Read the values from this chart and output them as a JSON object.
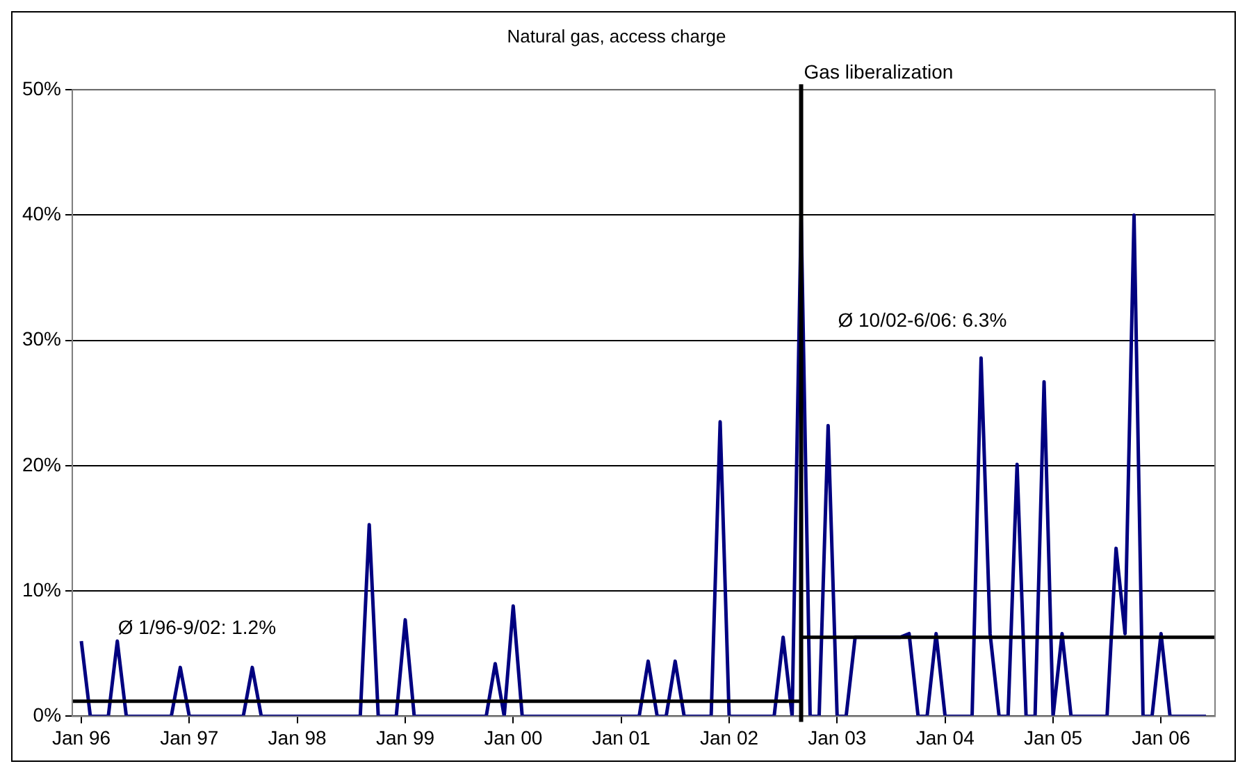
{
  "chart_data": {
    "type": "line",
    "title": "Natural gas, access charge",
    "x": [
      "1996-01",
      "1996-02",
      "1996-03",
      "1996-04",
      "1996-05",
      "1996-06",
      "1996-07",
      "1996-08",
      "1996-09",
      "1996-10",
      "1996-11",
      "1996-12",
      "1997-01",
      "1997-02",
      "1997-03",
      "1997-04",
      "1997-05",
      "1997-06",
      "1997-07",
      "1997-08",
      "1997-09",
      "1997-10",
      "1997-11",
      "1997-12",
      "1998-01",
      "1998-02",
      "1998-03",
      "1998-04",
      "1998-05",
      "1998-06",
      "1998-07",
      "1998-08",
      "1998-09",
      "1998-10",
      "1998-11",
      "1998-12",
      "1999-01",
      "1999-02",
      "1999-03",
      "1999-04",
      "1999-05",
      "1999-06",
      "1999-07",
      "1999-08",
      "1999-09",
      "1999-10",
      "1999-11",
      "1999-12",
      "2000-01",
      "2000-02",
      "2000-03",
      "2000-04",
      "2000-05",
      "2000-06",
      "2000-07",
      "2000-08",
      "2000-09",
      "2000-10",
      "2000-11",
      "2000-12",
      "2001-01",
      "2001-02",
      "2001-03",
      "2001-04",
      "2001-05",
      "2001-06",
      "2001-07",
      "2001-08",
      "2001-09",
      "2001-10",
      "2001-11",
      "2001-12",
      "2002-01",
      "2002-02",
      "2002-03",
      "2002-04",
      "2002-05",
      "2002-06",
      "2002-07",
      "2002-08",
      "2002-09",
      "2002-10",
      "2002-11",
      "2002-12",
      "2003-01",
      "2003-02",
      "2003-03",
      "2003-04",
      "2003-05",
      "2003-06",
      "2003-07",
      "2003-08",
      "2003-09",
      "2003-10",
      "2003-11",
      "2003-12",
      "2004-01",
      "2004-02",
      "2004-03",
      "2004-04",
      "2004-05",
      "2004-06",
      "2004-07",
      "2004-08",
      "2004-09",
      "2004-10",
      "2004-11",
      "2004-12",
      "2005-01",
      "2005-02",
      "2005-03",
      "2005-04",
      "2005-05",
      "2005-06",
      "2005-07",
      "2005-08",
      "2005-09",
      "2005-10",
      "2005-11",
      "2005-12",
      "2006-01",
      "2006-02",
      "2006-03",
      "2006-04",
      "2006-05",
      "2006-06"
    ],
    "series": [
      {
        "color": "#000080",
        "values": [
          6,
          0,
          0,
          0,
          6,
          0,
          0,
          0,
          0,
          0,
          0,
          3.9,
          0,
          0,
          0,
          0,
          0,
          0,
          0,
          3.9,
          0,
          0,
          0,
          0,
          0,
          0,
          0,
          0,
          0,
          0,
          0,
          0,
          15.3,
          0,
          0,
          0,
          7.7,
          0,
          0,
          0,
          0,
          0,
          0,
          0,
          0,
          0,
          4.2,
          0,
          8.8,
          0,
          0,
          0,
          0,
          0,
          0,
          0,
          0,
          0,
          0,
          0,
          0,
          0,
          0,
          4.4,
          0,
          0,
          4.4,
          0,
          0,
          0,
          0,
          23.5,
          0,
          0,
          0,
          0,
          0,
          0,
          6.3,
          0,
          40,
          0,
          0,
          23.2,
          0,
          0,
          6.3,
          6.3,
          6.3,
          6.3,
          6.3,
          6.3,
          6.6,
          0,
          0,
          6.6,
          0,
          0,
          0,
          0,
          28.6,
          6.6,
          0,
          0,
          20.1,
          0,
          0,
          26.7,
          0,
          6.6,
          0,
          0,
          0,
          0,
          0,
          13.4,
          6.6,
          40,
          0,
          0,
          6.6,
          0,
          0,
          0,
          0,
          0
        ]
      },
      {
        "type": "line",
        "color": "#000000",
        "x": [
          "1995-12",
          "2002-09"
        ],
        "values": [
          1.2,
          1.2
        ]
      },
      {
        "type": "line",
        "color": "#000000",
        "x": [
          "2002-09",
          "2006-07"
        ],
        "values": [
          6.3,
          6.3
        ]
      }
    ],
    "xlim": [
      "1995-12",
      "2006-07"
    ],
    "xticks": [
      {
        "value": "1996-01",
        "label": "Jan 96"
      },
      {
        "value": "1997-01",
        "label": "Jan 97"
      },
      {
        "value": "1998-01",
        "label": "Jan 98"
      },
      {
        "value": "1999-01",
        "label": "Jan 99"
      },
      {
        "value": "2000-01",
        "label": "Jan 00"
      },
      {
        "value": "2001-01",
        "label": "Jan 01"
      },
      {
        "value": "2002-01",
        "label": "Jan 02"
      },
      {
        "value": "2003-01",
        "label": "Jan 03"
      },
      {
        "value": "2004-01",
        "label": "Jan 04"
      },
      {
        "value": "2005-01",
        "label": "Jan 05"
      },
      {
        "value": "2006-01",
        "label": "Jan 06"
      }
    ],
    "ylim": [
      0,
      50
    ],
    "yticks": [
      {
        "value": 0,
        "label": "0%"
      },
      {
        "value": 10,
        "label": "10%"
      },
      {
        "value": 20,
        "label": "20%"
      },
      {
        "value": 30,
        "label": "30%"
      },
      {
        "value": 40,
        "label": "40%"
      },
      {
        "value": 50,
        "label": "50%"
      }
    ],
    "grid": "y",
    "legend": false,
    "marker": "none",
    "line_style": "solid",
    "ref_lines": [
      {
        "axis": "x",
        "value": "2002-09",
        "label": "Gas liberalization",
        "color": "#000000"
      }
    ],
    "annotations": [
      "Ø 1/96-9/02: 1.2%",
      "Ø 10/02-6/06: 6.3%"
    ]
  }
}
